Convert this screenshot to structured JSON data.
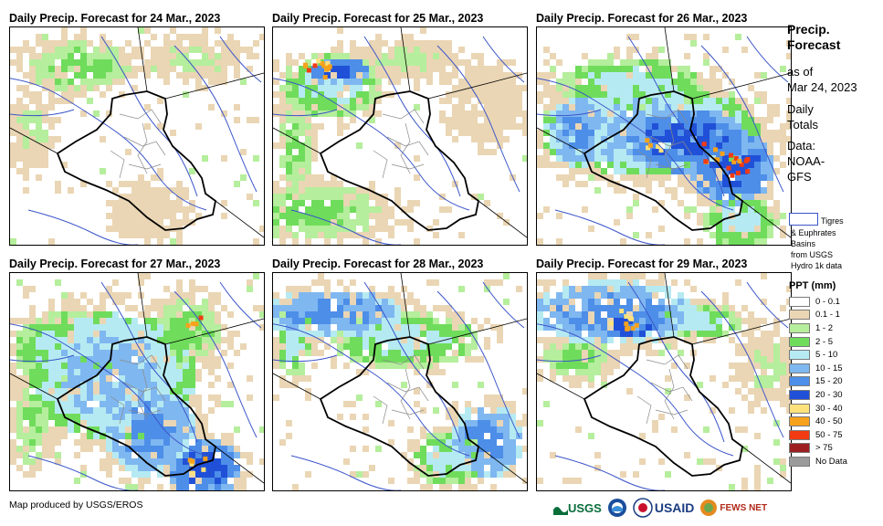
{
  "panels": [
    {
      "title": "Daily Precip. Forecast for 24 Mar., 2023",
      "day": "24"
    },
    {
      "title": "Daily Precip. Forecast for 25 Mar., 2023",
      "day": "25"
    },
    {
      "title": "Daily Precip. Forecast for 26 Mar., 2023",
      "day": "26"
    },
    {
      "title": "Daily Precip. Forecast for 27 Mar., 2023",
      "day": "27"
    },
    {
      "title": "Daily Precip. Forecast for 28 Mar., 2023",
      "day": "28"
    },
    {
      "title": "Daily Precip. Forecast for 29 Mar., 2023",
      "day": "29"
    }
  ],
  "side": {
    "title_line1": "Precip.",
    "title_line2": "Forecast",
    "asof_line1": "as of",
    "asof_line2": "Mar 24, 2023",
    "daily_line1": "Daily",
    "daily_line2": "Totals",
    "data_line1": "Data:",
    "data_line2": "NOAA-",
    "data_line3": "GFS",
    "basin_line1": "Tigres",
    "basin_line2": "& Euphrates",
    "basin_line3": "Basins",
    "basin_line4": "from USGS",
    "basin_line5": "Hydro 1k data"
  },
  "legend": {
    "title": "PPT (mm)",
    "items": [
      {
        "label": "0 - 0.1",
        "color": "#ffffff"
      },
      {
        "label": "0.1 - 1",
        "color": "#ead6b4"
      },
      {
        "label": "1 - 2",
        "color": "#b5ee9c"
      },
      {
        "label": "2 - 5",
        "color": "#6fdc5c"
      },
      {
        "label": "5 - 10",
        "color": "#b6eaf2"
      },
      {
        "label": "10 - 15",
        "color": "#7fb7f0"
      },
      {
        "label": "15 - 20",
        "color": "#4d8ee8"
      },
      {
        "label": "20 - 30",
        "color": "#2050d8"
      },
      {
        "label": "30 - 40",
        "color": "#fde27c"
      },
      {
        "label": "40 - 50",
        "color": "#f7a21b"
      },
      {
        "label": "50 - 75",
        "color": "#f23b12"
      },
      {
        "label": "> 75",
        "color": "#9e1f1f"
      },
      {
        "label": "No Data",
        "color": "#9b9b9b"
      }
    ]
  },
  "footer": {
    "credit": "Map produced by USGS/EROS",
    "logo_usgs": "USGS",
    "logo_noaa": "NOAA",
    "logo_usaid": "USAID",
    "logo_fews": "FEWS NET"
  }
}
